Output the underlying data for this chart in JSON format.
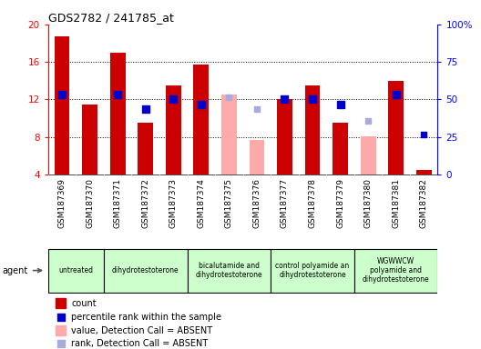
{
  "title": "GDS2782 / 241785_at",
  "samples": [
    "GSM187369",
    "GSM187370",
    "GSM187371",
    "GSM187372",
    "GSM187373",
    "GSM187374",
    "GSM187375",
    "GSM187376",
    "GSM187377",
    "GSM187378",
    "GSM187379",
    "GSM187380",
    "GSM187381",
    "GSM187382"
  ],
  "counts": [
    18.7,
    11.5,
    17.0,
    9.5,
    13.5,
    15.7,
    null,
    null,
    12.0,
    13.5,
    9.5,
    null,
    14.0,
    4.5
  ],
  "counts_absent": [
    null,
    null,
    null,
    null,
    null,
    null,
    12.5,
    7.7,
    null,
    null,
    null,
    8.1,
    null,
    null
  ],
  "percentile_ranks_left": [
    12.5,
    null,
    12.5,
    11.0,
    12.0,
    11.5,
    null,
    null,
    12.0,
    12.0,
    11.5,
    null,
    12.5,
    null
  ],
  "percentile_ranks_absent_left": [
    null,
    null,
    null,
    null,
    null,
    null,
    12.2,
    11.0,
    null,
    null,
    null,
    9.7,
    null,
    null
  ],
  "rank_absent_scatter": [
    null,
    null,
    null,
    null,
    null,
    null,
    null,
    null,
    null,
    null,
    null,
    null,
    null,
    8.3
  ],
  "absent_scatter_color_flag": [
    false,
    false,
    false,
    false,
    false,
    false,
    false,
    true,
    false,
    false,
    false,
    true,
    false,
    true
  ],
  "absent_flags": [
    false,
    false,
    false,
    false,
    false,
    false,
    true,
    true,
    false,
    false,
    false,
    true,
    false,
    false
  ],
  "groups": [
    {
      "label": "untreated",
      "start": 0,
      "end": 2,
      "color": "#ccffcc"
    },
    {
      "label": "dihydrotestoterone",
      "start": 2,
      "end": 5,
      "color": "#ccffcc"
    },
    {
      "label": "bicalutamide and\ndihydrotestoterone",
      "start": 5,
      "end": 8,
      "color": "#ccffcc"
    },
    {
      "label": "control polyamide an\ndihydrotestoterone",
      "start": 8,
      "end": 11,
      "color": "#ccffcc"
    },
    {
      "label": "WGWWCW\npolyamide and\ndihydrotestoterone",
      "start": 11,
      "end": 14,
      "color": "#ccffcc"
    }
  ],
  "ylim_left": [
    4,
    20
  ],
  "ylim_right": [
    0,
    100
  ],
  "yticks_left": [
    4,
    8,
    12,
    16,
    20
  ],
  "yticks_right": [
    0,
    25,
    50,
    75,
    100
  ],
  "bar_color": "#cc0000",
  "absent_bar_color": "#ffaaaa",
  "rank_color": "#0000cc",
  "absent_rank_color": "#aaaadd",
  "tick_area_bg": "#cccccc",
  "bar_width": 0.55
}
